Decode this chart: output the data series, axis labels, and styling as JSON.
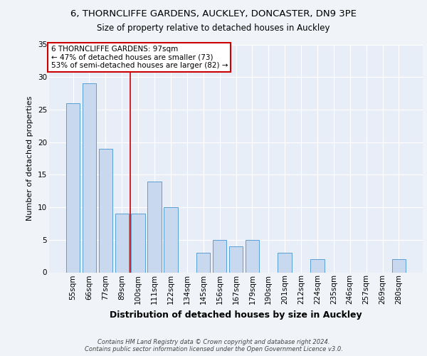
{
  "title_line1": "6, THORNCLIFFE GARDENS, AUCKLEY, DONCASTER, DN9 3PE",
  "title_line2": "Size of property relative to detached houses in Auckley",
  "xlabel": "Distribution of detached houses by size in Auckley",
  "ylabel": "Number of detached properties",
  "categories": [
    "55sqm",
    "66sqm",
    "77sqm",
    "89sqm",
    "100sqm",
    "111sqm",
    "122sqm",
    "134sqm",
    "145sqm",
    "156sqm",
    "167sqm",
    "179sqm",
    "190sqm",
    "201sqm",
    "212sqm",
    "224sqm",
    "235sqm",
    "246sqm",
    "257sqm",
    "269sqm",
    "280sqm"
  ],
  "values": [
    26,
    29,
    19,
    9,
    9,
    14,
    10,
    0,
    3,
    5,
    4,
    5,
    0,
    3,
    0,
    2,
    0,
    0,
    0,
    0,
    2
  ],
  "bar_color": "#c8d8ee",
  "bar_edge_color": "#5a9fd4",
  "red_line_x": 3.5,
  "annotation_text_line1": "6 THORNCLIFFE GARDENS: 97sqm",
  "annotation_text_line2": "← 47% of detached houses are smaller (73)",
  "annotation_text_line3": "53% of semi-detached houses are larger (82) →",
  "annotation_box_color": "#ffffff",
  "annotation_box_edge": "#cc0000",
  "footer": "Contains HM Land Registry data © Crown copyright and database right 2024.\nContains public sector information licensed under the Open Government Licence v3.0.",
  "ylim": [
    0,
    35
  ],
  "yticks": [
    0,
    5,
    10,
    15,
    20,
    25,
    30,
    35
  ],
  "background_color": "#e8eef8",
  "grid_color": "#ffffff",
  "title_fontsize": 9.5,
  "subtitle_fontsize": 8.5,
  "title_fontweight": "normal",
  "axis_label_fontsize": 8.0,
  "xlabel_fontsize": 9.0,
  "ylabel_fontsize": 8.0,
  "tick_fontsize": 7.5,
  "footer_fontsize": 6.0,
  "annotation_fontsize": 7.5
}
